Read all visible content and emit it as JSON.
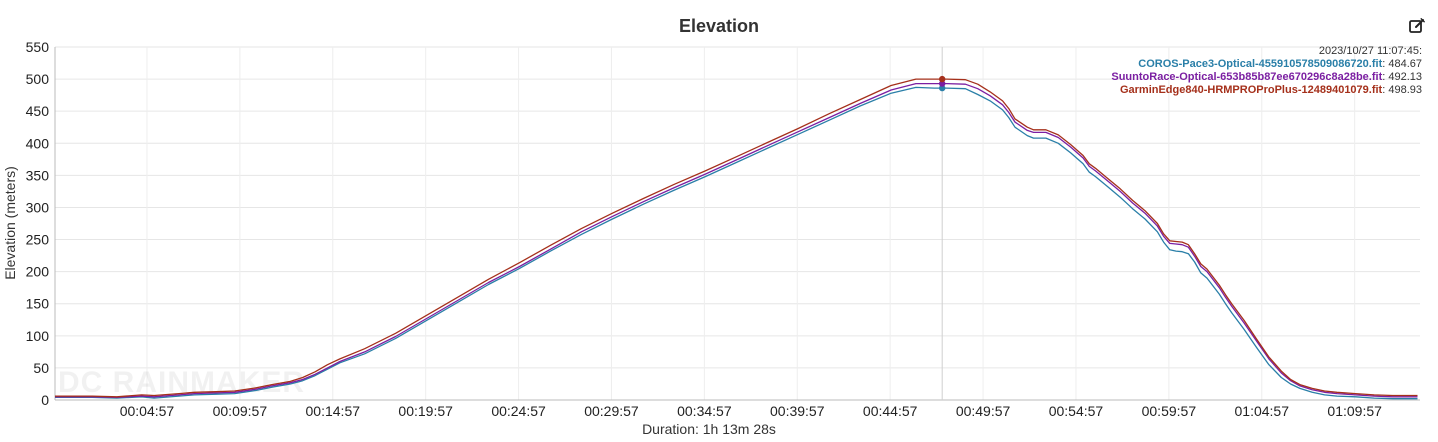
{
  "toolbar": {
    "edit_icon": "edit-icon"
  },
  "tooltip": {
    "timestamp": "2023/10/27 11:07:45:"
  },
  "watermark": "DC RAINMAKER",
  "chart_data": {
    "type": "line",
    "title": "Elevation",
    "xlabel": "Duration: 1h 13m 28s",
    "ylabel": "Elevation (meters)",
    "xlim": [
      0,
      4408
    ],
    "ylim": [
      0,
      550
    ],
    "yticks": [
      0,
      50,
      100,
      150,
      200,
      250,
      300,
      350,
      400,
      450,
      500,
      550
    ],
    "xticks": [
      {
        "t": 297,
        "label": "00:04:57"
      },
      {
        "t": 597,
        "label": "00:09:57"
      },
      {
        "t": 897,
        "label": "00:14:57"
      },
      {
        "t": 1197,
        "label": "00:19:57"
      },
      {
        "t": 1497,
        "label": "00:24:57"
      },
      {
        "t": 1797,
        "label": "00:29:57"
      },
      {
        "t": 2097,
        "label": "00:34:57"
      },
      {
        "t": 2397,
        "label": "00:39:57"
      },
      {
        "t": 2697,
        "label": "00:44:57"
      },
      {
        "t": 2997,
        "label": "00:49:57"
      },
      {
        "t": 3297,
        "label": "00:54:57"
      },
      {
        "t": 3597,
        "label": "00:59:57"
      },
      {
        "t": 3897,
        "label": "01:04:57"
      },
      {
        "t": 4197,
        "label": "01:09:57"
      }
    ],
    "grid": true,
    "legend": "top-right",
    "cursor_t": 2865,
    "series": [
      {
        "name": "COROS-Pace3-Optical-455910578509086720.fit",
        "color": "#2a7fa8",
        "cursor_value": "484.67",
        "x": [
          0,
          120,
          200,
          280,
          320,
          400,
          450,
          520,
          580,
          650,
          700,
          760,
          800,
          840,
          880,
          920,
          1000,
          1100,
          1200,
          1300,
          1400,
          1500,
          1600,
          1700,
          1800,
          1900,
          2000,
          2100,
          2200,
          2300,
          2400,
          2500,
          2600,
          2700,
          2780,
          2840,
          2880,
          2940,
          2980,
          3020,
          3060,
          3080,
          3100,
          3140,
          3160,
          3200,
          3240,
          3280,
          3320,
          3340,
          3360,
          3400,
          3440,
          3480,
          3520,
          3560,
          3580,
          3600,
          3620,
          3640,
          3660,
          3680,
          3700,
          3720,
          3760,
          3780,
          3800,
          3840,
          3880,
          3920,
          3960,
          3990,
          4020,
          4060,
          4100,
          4140,
          4200,
          4260,
          4320,
          4360,
          4400
        ],
        "y": [
          4,
          4,
          3,
          5,
          3,
          6,
          8,
          9,
          10,
          15,
          20,
          25,
          30,
          38,
          48,
          58,
          72,
          96,
          124,
          152,
          180,
          205,
          232,
          258,
          282,
          305,
          327,
          348,
          370,
          392,
          414,
          436,
          458,
          478,
          487,
          486,
          486,
          485,
          476,
          466,
          452,
          440,
          425,
          412,
          408,
          408,
          400,
          385,
          368,
          355,
          348,
          332,
          316,
          298,
          282,
          262,
          246,
          234,
          232,
          231,
          228,
          215,
          198,
          190,
          165,
          150,
          136,
          110,
          82,
          55,
          35,
          25,
          18,
          12,
          8,
          6,
          5,
          3,
          2,
          2,
          2
        ]
      },
      {
        "name": "SuuntoRace-Optical-653b85b87ee670296c8a28be.fit",
        "color": "#7b1fa2",
        "cursor_value": "492.13",
        "x": [
          0,
          120,
          200,
          280,
          320,
          400,
          450,
          520,
          580,
          650,
          700,
          760,
          800,
          840,
          880,
          920,
          1000,
          1100,
          1200,
          1300,
          1400,
          1500,
          1600,
          1700,
          1800,
          1900,
          2000,
          2100,
          2200,
          2300,
          2400,
          2500,
          2600,
          2700,
          2780,
          2840,
          2880,
          2940,
          2980,
          3020,
          3060,
          3080,
          3100,
          3140,
          3160,
          3200,
          3240,
          3280,
          3320,
          3340,
          3360,
          3400,
          3440,
          3480,
          3520,
          3560,
          3580,
          3600,
          3620,
          3640,
          3660,
          3680,
          3700,
          3720,
          3760,
          3780,
          3800,
          3840,
          3880,
          3920,
          3960,
          3990,
          4020,
          4060,
          4100,
          4140,
          4200,
          4260,
          4320,
          4360,
          4400
        ],
        "y": [
          5,
          5,
          4,
          6,
          5,
          8,
          10,
          11,
          12,
          17,
          22,
          27,
          32,
          40,
          50,
          60,
          75,
          99,
          127,
          155,
          183,
          208,
          235,
          262,
          286,
          309,
          331,
          352,
          374,
          396,
          418,
          440,
          462,
          483,
          493,
          493,
          493,
          492,
          485,
          474,
          460,
          448,
          433,
          420,
          417,
          417,
          409,
          394,
          377,
          364,
          357,
          341,
          325,
          307,
          291,
          271,
          255,
          244,
          243,
          242,
          238,
          224,
          208,
          200,
          175,
          160,
          146,
          120,
          92,
          64,
          42,
          30,
          22,
          16,
          12,
          10,
          8,
          6,
          5,
          5,
          5
        ]
      },
      {
        "name": "GarminEdge840-HRMPROProPlus-12489401079.fit",
        "color": "#a5301b",
        "cursor_value": "498.93",
        "x": [
          0,
          120,
          200,
          280,
          320,
          400,
          450,
          520,
          580,
          650,
          700,
          760,
          800,
          840,
          880,
          920,
          1000,
          1100,
          1200,
          1300,
          1400,
          1500,
          1600,
          1700,
          1800,
          1900,
          2000,
          2100,
          2200,
          2300,
          2400,
          2500,
          2600,
          2700,
          2780,
          2840,
          2880,
          2940,
          2980,
          3020,
          3060,
          3080,
          3100,
          3140,
          3160,
          3200,
          3240,
          3280,
          3320,
          3340,
          3360,
          3400,
          3440,
          3480,
          3520,
          3560,
          3580,
          3600,
          3620,
          3640,
          3660,
          3680,
          3700,
          3720,
          3760,
          3780,
          3800,
          3840,
          3880,
          3920,
          3960,
          3990,
          4020,
          4060,
          4100,
          4140,
          4200,
          4260,
          4320,
          4360,
          4400
        ],
        "y": [
          6,
          6,
          5,
          8,
          7,
          10,
          12,
          13,
          14,
          19,
          24,
          29,
          35,
          44,
          55,
          64,
          80,
          104,
          132,
          160,
          188,
          214,
          241,
          267,
          291,
          314,
          336,
          357,
          379,
          401,
          423,
          446,
          468,
          490,
          500,
          500,
          500,
          499,
          492,
          480,
          466,
          454,
          438,
          425,
          421,
          421,
          413,
          398,
          381,
          368,
          361,
          345,
          329,
          311,
          295,
          275,
          259,
          248,
          247,
          246,
          242,
          228,
          212,
          204,
          179,
          164,
          150,
          124,
          95,
          67,
          45,
          32,
          24,
          18,
          14,
          12,
          10,
          8,
          7,
          7,
          7
        ]
      }
    ]
  }
}
